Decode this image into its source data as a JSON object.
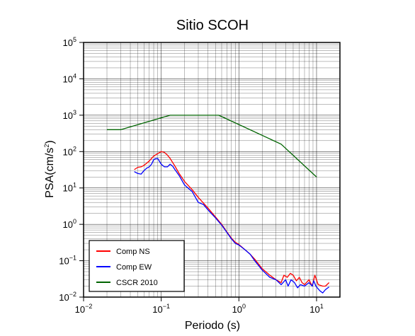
{
  "chart_data": {
    "type": "line",
    "title": "Sitio SCOH",
    "xlabel": "Periodo (s)",
    "ylabel_base": "PSA(cm/s",
    "ylabel_sup": "2",
    "ylabel_close": ")",
    "xscale": "log",
    "yscale": "log",
    "xlim": [
      0.01,
      20
    ],
    "ylim": [
      0.01,
      100000
    ],
    "grid": true,
    "legend_position": "bottom-left",
    "x_ticks": [
      {
        "base": "10",
        "exp": "−2",
        "value": 0.01
      },
      {
        "base": "10",
        "exp": "−1",
        "value": 0.1
      },
      {
        "base": "10",
        "exp": "0",
        "value": 1
      },
      {
        "base": "10",
        "exp": "1",
        "value": 10
      }
    ],
    "y_ticks": [
      {
        "base": "10",
        "exp": "−2",
        "value": 0.01
      },
      {
        "base": "10",
        "exp": "−1",
        "value": 0.1
      },
      {
        "base": "10",
        "exp": "0",
        "value": 1
      },
      {
        "base": "10",
        "exp": "1",
        "value": 10
      },
      {
        "base": "10",
        "exp": "2",
        "value": 100
      },
      {
        "base": "10",
        "exp": "3",
        "value": 1000
      },
      {
        "base": "10",
        "exp": "4",
        "value": 10000
      },
      {
        "base": "10",
        "exp": "5",
        "value": 100000
      }
    ],
    "series": [
      {
        "name": "Comp NS",
        "color": "#ff0000",
        "points": [
          [
            0.045,
            32
          ],
          [
            0.05,
            37
          ],
          [
            0.055,
            38
          ],
          [
            0.06,
            42
          ],
          [
            0.065,
            48
          ],
          [
            0.07,
            55
          ],
          [
            0.075,
            65
          ],
          [
            0.08,
            75
          ],
          [
            0.09,
            88
          ],
          [
            0.1,
            100
          ],
          [
            0.11,
            95
          ],
          [
            0.12,
            80
          ],
          [
            0.13,
            65
          ],
          [
            0.15,
            40
          ],
          [
            0.17,
            25
          ],
          [
            0.2,
            15
          ],
          [
            0.25,
            9
          ],
          [
            0.3,
            5.5
          ],
          [
            0.4,
            2.8
          ],
          [
            0.5,
            1.6
          ],
          [
            0.6,
            1.0
          ],
          [
            0.7,
            0.62
          ],
          [
            0.8,
            0.42
          ],
          [
            0.9,
            0.32
          ],
          [
            1.0,
            0.28
          ],
          [
            1.2,
            0.2
          ],
          [
            1.4,
            0.15
          ],
          [
            1.6,
            0.11
          ],
          [
            2.0,
            0.06
          ],
          [
            2.5,
            0.04
          ],
          [
            3.0,
            0.03
          ],
          [
            3.5,
            0.025
          ],
          [
            3.8,
            0.04
          ],
          [
            4.2,
            0.035
          ],
          [
            4.6,
            0.045
          ],
          [
            5.0,
            0.04
          ],
          [
            5.5,
            0.028
          ],
          [
            6.0,
            0.035
          ],
          [
            6.5,
            0.025
          ],
          [
            7.0,
            0.022
          ],
          [
            8.0,
            0.03
          ],
          [
            8.8,
            0.02
          ],
          [
            9.5,
            0.04
          ],
          [
            10.5,
            0.022
          ],
          [
            12.0,
            0.02
          ],
          [
            13.0,
            0.02
          ],
          [
            14.5,
            0.025
          ]
        ]
      },
      {
        "name": "Comp EW",
        "color": "#0000ff",
        "points": [
          [
            0.045,
            28
          ],
          [
            0.05,
            25
          ],
          [
            0.055,
            24
          ],
          [
            0.06,
            30
          ],
          [
            0.065,
            35
          ],
          [
            0.07,
            38
          ],
          [
            0.075,
            45
          ],
          [
            0.08,
            60
          ],
          [
            0.085,
            64
          ],
          [
            0.09,
            65
          ],
          [
            0.1,
            45
          ],
          [
            0.11,
            38
          ],
          [
            0.12,
            38
          ],
          [
            0.13,
            45
          ],
          [
            0.14,
            40
          ],
          [
            0.15,
            32
          ],
          [
            0.17,
            22
          ],
          [
            0.2,
            12
          ],
          [
            0.25,
            8
          ],
          [
            0.3,
            4.0
          ],
          [
            0.35,
            3.5
          ],
          [
            0.4,
            2.5
          ],
          [
            0.5,
            1.5
          ],
          [
            0.6,
            0.95
          ],
          [
            0.7,
            0.6
          ],
          [
            0.8,
            0.4
          ],
          [
            0.9,
            0.3
          ],
          [
            1.0,
            0.27
          ],
          [
            1.2,
            0.2
          ],
          [
            1.4,
            0.15
          ],
          [
            1.6,
            0.1
          ],
          [
            2.0,
            0.055
          ],
          [
            2.5,
            0.035
          ],
          [
            3.0,
            0.03
          ],
          [
            3.5,
            0.022
          ],
          [
            4.0,
            0.03
          ],
          [
            4.3,
            0.02
          ],
          [
            4.7,
            0.03
          ],
          [
            5.2,
            0.025
          ],
          [
            5.7,
            0.018
          ],
          [
            6.2,
            0.022
          ],
          [
            7.0,
            0.02
          ],
          [
            8.0,
            0.025
          ],
          [
            8.8,
            0.02
          ],
          [
            9.2,
            0.028
          ],
          [
            9.8,
            0.02
          ],
          [
            11.0,
            0.015
          ],
          [
            12.0,
            0.013
          ],
          [
            13.0,
            0.016
          ],
          [
            14.5,
            0.019
          ]
        ]
      },
      {
        "name": "CSCR 2010",
        "color": "#006400",
        "points": [
          [
            0.02,
            400
          ],
          [
            0.03,
            400
          ],
          [
            0.13,
            1000
          ],
          [
            0.55,
            1000
          ],
          [
            3.5,
            160
          ],
          [
            10.0,
            20
          ]
        ]
      }
    ]
  }
}
